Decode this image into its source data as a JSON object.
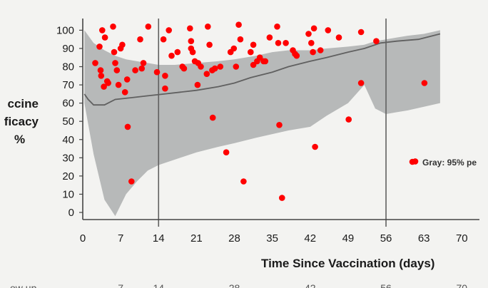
{
  "chart_data": {
    "type": "scatter",
    "title": "",
    "xlabel": "Time Since Vaccination (days)",
    "ylabel_fragments": [
      "ccine",
      "ficacy",
      "%"
    ],
    "xlim": [
      0,
      70
    ],
    "ylim": [
      0,
      100
    ],
    "x_ticks": [
      0,
      7,
      14,
      21,
      28,
      35,
      42,
      49,
      56,
      63,
      70
    ],
    "y_ticks": [
      0,
      10,
      20,
      30,
      40,
      50,
      60,
      70,
      80,
      90,
      100
    ],
    "vertical_markers": [
      14,
      56
    ],
    "legend": {
      "placement": "right",
      "label": "Gray: 95% pe",
      "marker_color": "#ff0000"
    },
    "footer_fragments": [
      "…ow up",
      "7",
      "14",
      "28",
      "42",
      "56",
      "70"
    ],
    "colors": {
      "points": "#ff0000",
      "band": "#b7b9b9",
      "line": "#606060",
      "axes": "#444444"
    },
    "band": {
      "x": [
        0.3,
        2,
        4,
        6,
        8,
        10,
        12,
        14,
        17,
        21,
        25,
        28,
        32,
        35,
        38,
        42,
        45,
        49,
        52,
        54,
        56,
        58,
        60,
        63,
        66
      ],
      "upper": [
        100,
        93,
        89,
        86,
        84,
        83,
        82,
        81,
        81,
        82,
        83,
        84,
        86,
        88,
        89,
        89,
        90,
        91,
        92,
        94,
        95,
        96,
        97,
        98,
        100
      ],
      "lower": [
        60,
        32,
        7,
        -2,
        10,
        17,
        23,
        26,
        29,
        33,
        36,
        38,
        41,
        43,
        45,
        47,
        53,
        60,
        70,
        57,
        54,
        55,
        56,
        58,
        60
      ]
    },
    "central_line": {
      "x": [
        0.3,
        1,
        2,
        4,
        6,
        9,
        12,
        15,
        18,
        21,
        25,
        28,
        31,
        35,
        38,
        42,
        45,
        49,
        52,
        55,
        58,
        62,
        66
      ],
      "y": [
        65,
        62,
        59,
        59,
        62,
        63,
        64,
        65,
        66,
        67,
        69,
        71,
        74,
        77,
        80,
        83,
        85,
        88,
        90,
        93,
        94,
        95,
        98
      ]
    },
    "points": [
      {
        "x": 2.3,
        "y": 82
      },
      {
        "x": 3.1,
        "y": 91
      },
      {
        "x": 3.3,
        "y": 78
      },
      {
        "x": 3.4,
        "y": 75
      },
      {
        "x": 3.6,
        "y": 100
      },
      {
        "x": 3.9,
        "y": 69
      },
      {
        "x": 4.1,
        "y": 96
      },
      {
        "x": 4.5,
        "y": 72
      },
      {
        "x": 4.7,
        "y": 71
      },
      {
        "x": 5.6,
        "y": 102
      },
      {
        "x": 5.8,
        "y": 88
      },
      {
        "x": 6.0,
        "y": 82
      },
      {
        "x": 6.3,
        "y": 78
      },
      {
        "x": 6.6,
        "y": 70
      },
      {
        "x": 7.0,
        "y": 90
      },
      {
        "x": 7.3,
        "y": 92
      },
      {
        "x": 7.8,
        "y": 66
      },
      {
        "x": 8.2,
        "y": 73
      },
      {
        "x": 8.3,
        "y": 47
      },
      {
        "x": 9.0,
        "y": 17
      },
      {
        "x": 9.7,
        "y": 78
      },
      {
        "x": 10.6,
        "y": 95
      },
      {
        "x": 10.9,
        "y": 79
      },
      {
        "x": 11.2,
        "y": 82
      },
      {
        "x": 12.1,
        "y": 102
      },
      {
        "x": 13.7,
        "y": 77
      },
      {
        "x": 14.9,
        "y": 95
      },
      {
        "x": 15.2,
        "y": 75
      },
      {
        "x": 15.2,
        "y": 68
      },
      {
        "x": 15.9,
        "y": 100
      },
      {
        "x": 16.4,
        "y": 86
      },
      {
        "x": 17.5,
        "y": 88
      },
      {
        "x": 18.4,
        "y": 80
      },
      {
        "x": 18.7,
        "y": 79
      },
      {
        "x": 19.8,
        "y": 101
      },
      {
        "x": 20.0,
        "y": 94
      },
      {
        "x": 20.0,
        "y": 90
      },
      {
        "x": 20.3,
        "y": 88
      },
      {
        "x": 20.7,
        "y": 83
      },
      {
        "x": 21.3,
        "y": 82
      },
      {
        "x": 21.2,
        "y": 70
      },
      {
        "x": 21.8,
        "y": 80
      },
      {
        "x": 23.1,
        "y": 102
      },
      {
        "x": 22.9,
        "y": 76
      },
      {
        "x": 23.4,
        "y": 92
      },
      {
        "x": 23.9,
        "y": 78
      },
      {
        "x": 24.0,
        "y": 52
      },
      {
        "x": 24.4,
        "y": 79
      },
      {
        "x": 25.4,
        "y": 80
      },
      {
        "x": 26.5,
        "y": 33
      },
      {
        "x": 27.3,
        "y": 88
      },
      {
        "x": 27.9,
        "y": 90
      },
      {
        "x": 28.3,
        "y": 80
      },
      {
        "x": 28.8,
        "y": 103
      },
      {
        "x": 29.1,
        "y": 95
      },
      {
        "x": 29.7,
        "y": 17
      },
      {
        "x": 31.0,
        "y": 88
      },
      {
        "x": 31.5,
        "y": 92
      },
      {
        "x": 31.5,
        "y": 81
      },
      {
        "x": 32.2,
        "y": 83
      },
      {
        "x": 32.7,
        "y": 85
      },
      {
        "x": 33.4,
        "y": 83
      },
      {
        "x": 33.7,
        "y": 83
      },
      {
        "x": 34.5,
        "y": 96
      },
      {
        "x": 35.9,
        "y": 102
      },
      {
        "x": 36.1,
        "y": 93
      },
      {
        "x": 36.3,
        "y": 48
      },
      {
        "x": 36.8,
        "y": 8
      },
      {
        "x": 37.5,
        "y": 93
      },
      {
        "x": 38.8,
        "y": 89
      },
      {
        "x": 39.2,
        "y": 87
      },
      {
        "x": 39.5,
        "y": 86
      },
      {
        "x": 41.7,
        "y": 98
      },
      {
        "x": 42.2,
        "y": 93
      },
      {
        "x": 42.5,
        "y": 88
      },
      {
        "x": 42.7,
        "y": 101
      },
      {
        "x": 42.9,
        "y": 36
      },
      {
        "x": 43.9,
        "y": 89
      },
      {
        "x": 45.3,
        "y": 100
      },
      {
        "x": 47.3,
        "y": 96
      },
      {
        "x": 49.1,
        "y": 51
      },
      {
        "x": 51.4,
        "y": 99
      },
      {
        "x": 51.4,
        "y": 71
      },
      {
        "x": 54.2,
        "y": 94
      },
      {
        "x": 61.4,
        "y": 28
      },
      {
        "x": 63.1,
        "y": 71
      }
    ]
  }
}
